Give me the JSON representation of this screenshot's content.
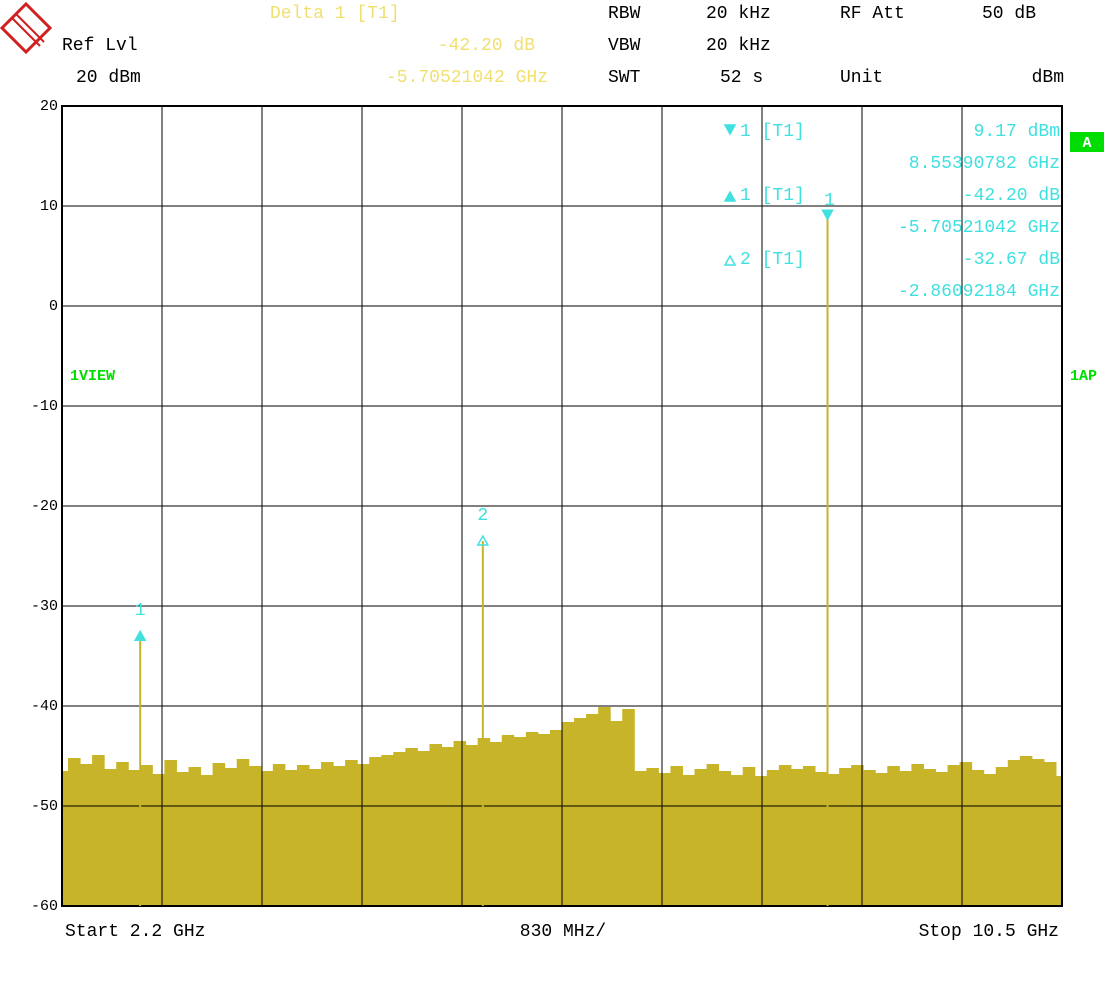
{
  "header": {
    "delta_title": "Delta 1 [T1]",
    "delta_level": "-42.20 dB",
    "delta_freq": "-5.70521042 GHz",
    "ref_label": "Ref Lvl",
    "ref_value": "20 dBm",
    "rbw_label": "RBW",
    "rbw_value": "20 kHz",
    "vbw_label": "VBW",
    "vbw_value": "20 kHz",
    "swt_label": "SWT",
    "swt_value": "52 s",
    "rf_att_label": "RF Att",
    "rf_att_value": "50 dB",
    "unit_label": "Unit",
    "unit_value": "dBm",
    "view_label": "1VIEW",
    "trace_mode": "1AP",
    "trace_tag": "A",
    "start": "Start 2.2 GHz",
    "span_per_div": "830 MHz/",
    "stop": "Stop 10.5 GHz"
  },
  "chart_data": {
    "type": "area",
    "xlim": [
      2.2,
      10.5
    ],
    "ylim": [
      -60,
      20
    ],
    "yticks": [
      20,
      10,
      0,
      -10,
      -20,
      -30,
      -40,
      -50,
      -60
    ],
    "grid": true,
    "x": [
      2.2,
      2.3,
      2.4,
      2.5,
      2.6,
      2.7,
      2.8,
      2.9,
      3.0,
      3.1,
      3.2,
      3.3,
      3.4,
      3.5,
      3.6,
      3.7,
      3.8,
      3.9,
      4.0,
      4.1,
      4.2,
      4.3,
      4.4,
      4.5,
      4.6,
      4.7,
      4.8,
      4.9,
      5.0,
      5.1,
      5.2,
      5.3,
      5.4,
      5.5,
      5.6,
      5.7,
      5.8,
      5.9,
      6.0,
      6.1,
      6.2,
      6.3,
      6.4,
      6.5,
      6.6,
      6.7,
      6.8,
      6.9,
      7.0,
      7.1,
      7.2,
      7.3,
      7.4,
      7.5,
      7.6,
      7.7,
      7.8,
      7.9,
      8.0,
      8.1,
      8.2,
      8.3,
      8.4,
      8.5,
      8.6,
      8.7,
      8.8,
      8.9,
      9.0,
      9.1,
      9.2,
      9.3,
      9.4,
      9.5,
      9.6,
      9.7,
      9.8,
      9.9,
      10.0,
      10.1,
      10.2,
      10.3,
      10.4,
      10.5
    ],
    "series": [
      {
        "color": "#c8b428",
        "values": [
          -46.5,
          -45.2,
          -45.8,
          -44.9,
          -46.3,
          -45.6,
          -46.4,
          -45.9,
          -46.8,
          -45.4,
          -46.6,
          -46.1,
          -46.9,
          -45.7,
          -46.2,
          -45.3,
          -46.0,
          -46.5,
          -45.8,
          -46.4,
          -45.9,
          -46.3,
          -45.6,
          -46.0,
          -45.4,
          -45.8,
          -45.1,
          -44.9,
          -44.6,
          -44.2,
          -44.5,
          -43.8,
          -44.1,
          -43.5,
          -43.9,
          -43.2,
          -43.6,
          -42.9,
          -43.1,
          -42.6,
          -42.8,
          -42.4,
          -41.6,
          -41.2,
          -40.8,
          -40.1,
          -41.5,
          -40.3,
          -46.5,
          -46.2,
          -46.7,
          -46.0,
          -46.9,
          -46.3,
          -45.8,
          -46.5,
          -46.9,
          -46.1,
          -47.0,
          -46.4,
          -45.9,
          -46.3,
          -46.0,
          -46.6,
          -46.8,
          -46.2,
          -45.9,
          -46.4,
          -46.7,
          -46.0,
          -46.5,
          -45.8,
          -46.3,
          -46.6,
          -45.9,
          -45.6,
          -46.4,
          -46.8,
          -46.1,
          -45.4,
          -45.0,
          -45.3,
          -45.6,
          -47.0
        ]
      }
    ],
    "markers": [
      {
        "label": "1",
        "x": 2.849,
        "y": -33.03,
        "shape": "up",
        "color": "#40e0e0"
      },
      {
        "label": "2",
        "x": 5.693,
        "y": -23.5,
        "shape": "up-open",
        "color": "#40e0e0"
      },
      {
        "label": "1",
        "x": 8.5539,
        "y": 9.17,
        "shape": "down",
        "color": "#40e0e0"
      }
    ],
    "readout": [
      {
        "name": "1 [T1]",
        "level": "9.17 dBm",
        "freq": "8.55390782 GHz"
      },
      {
        "name": "1 [T1]",
        "level": "-42.20 dB",
        "freq": "-5.70521042 GHz"
      },
      {
        "name": "2 [T1]",
        "level": "-32.67 dB",
        "freq": "-2.86092184 GHz"
      }
    ]
  }
}
